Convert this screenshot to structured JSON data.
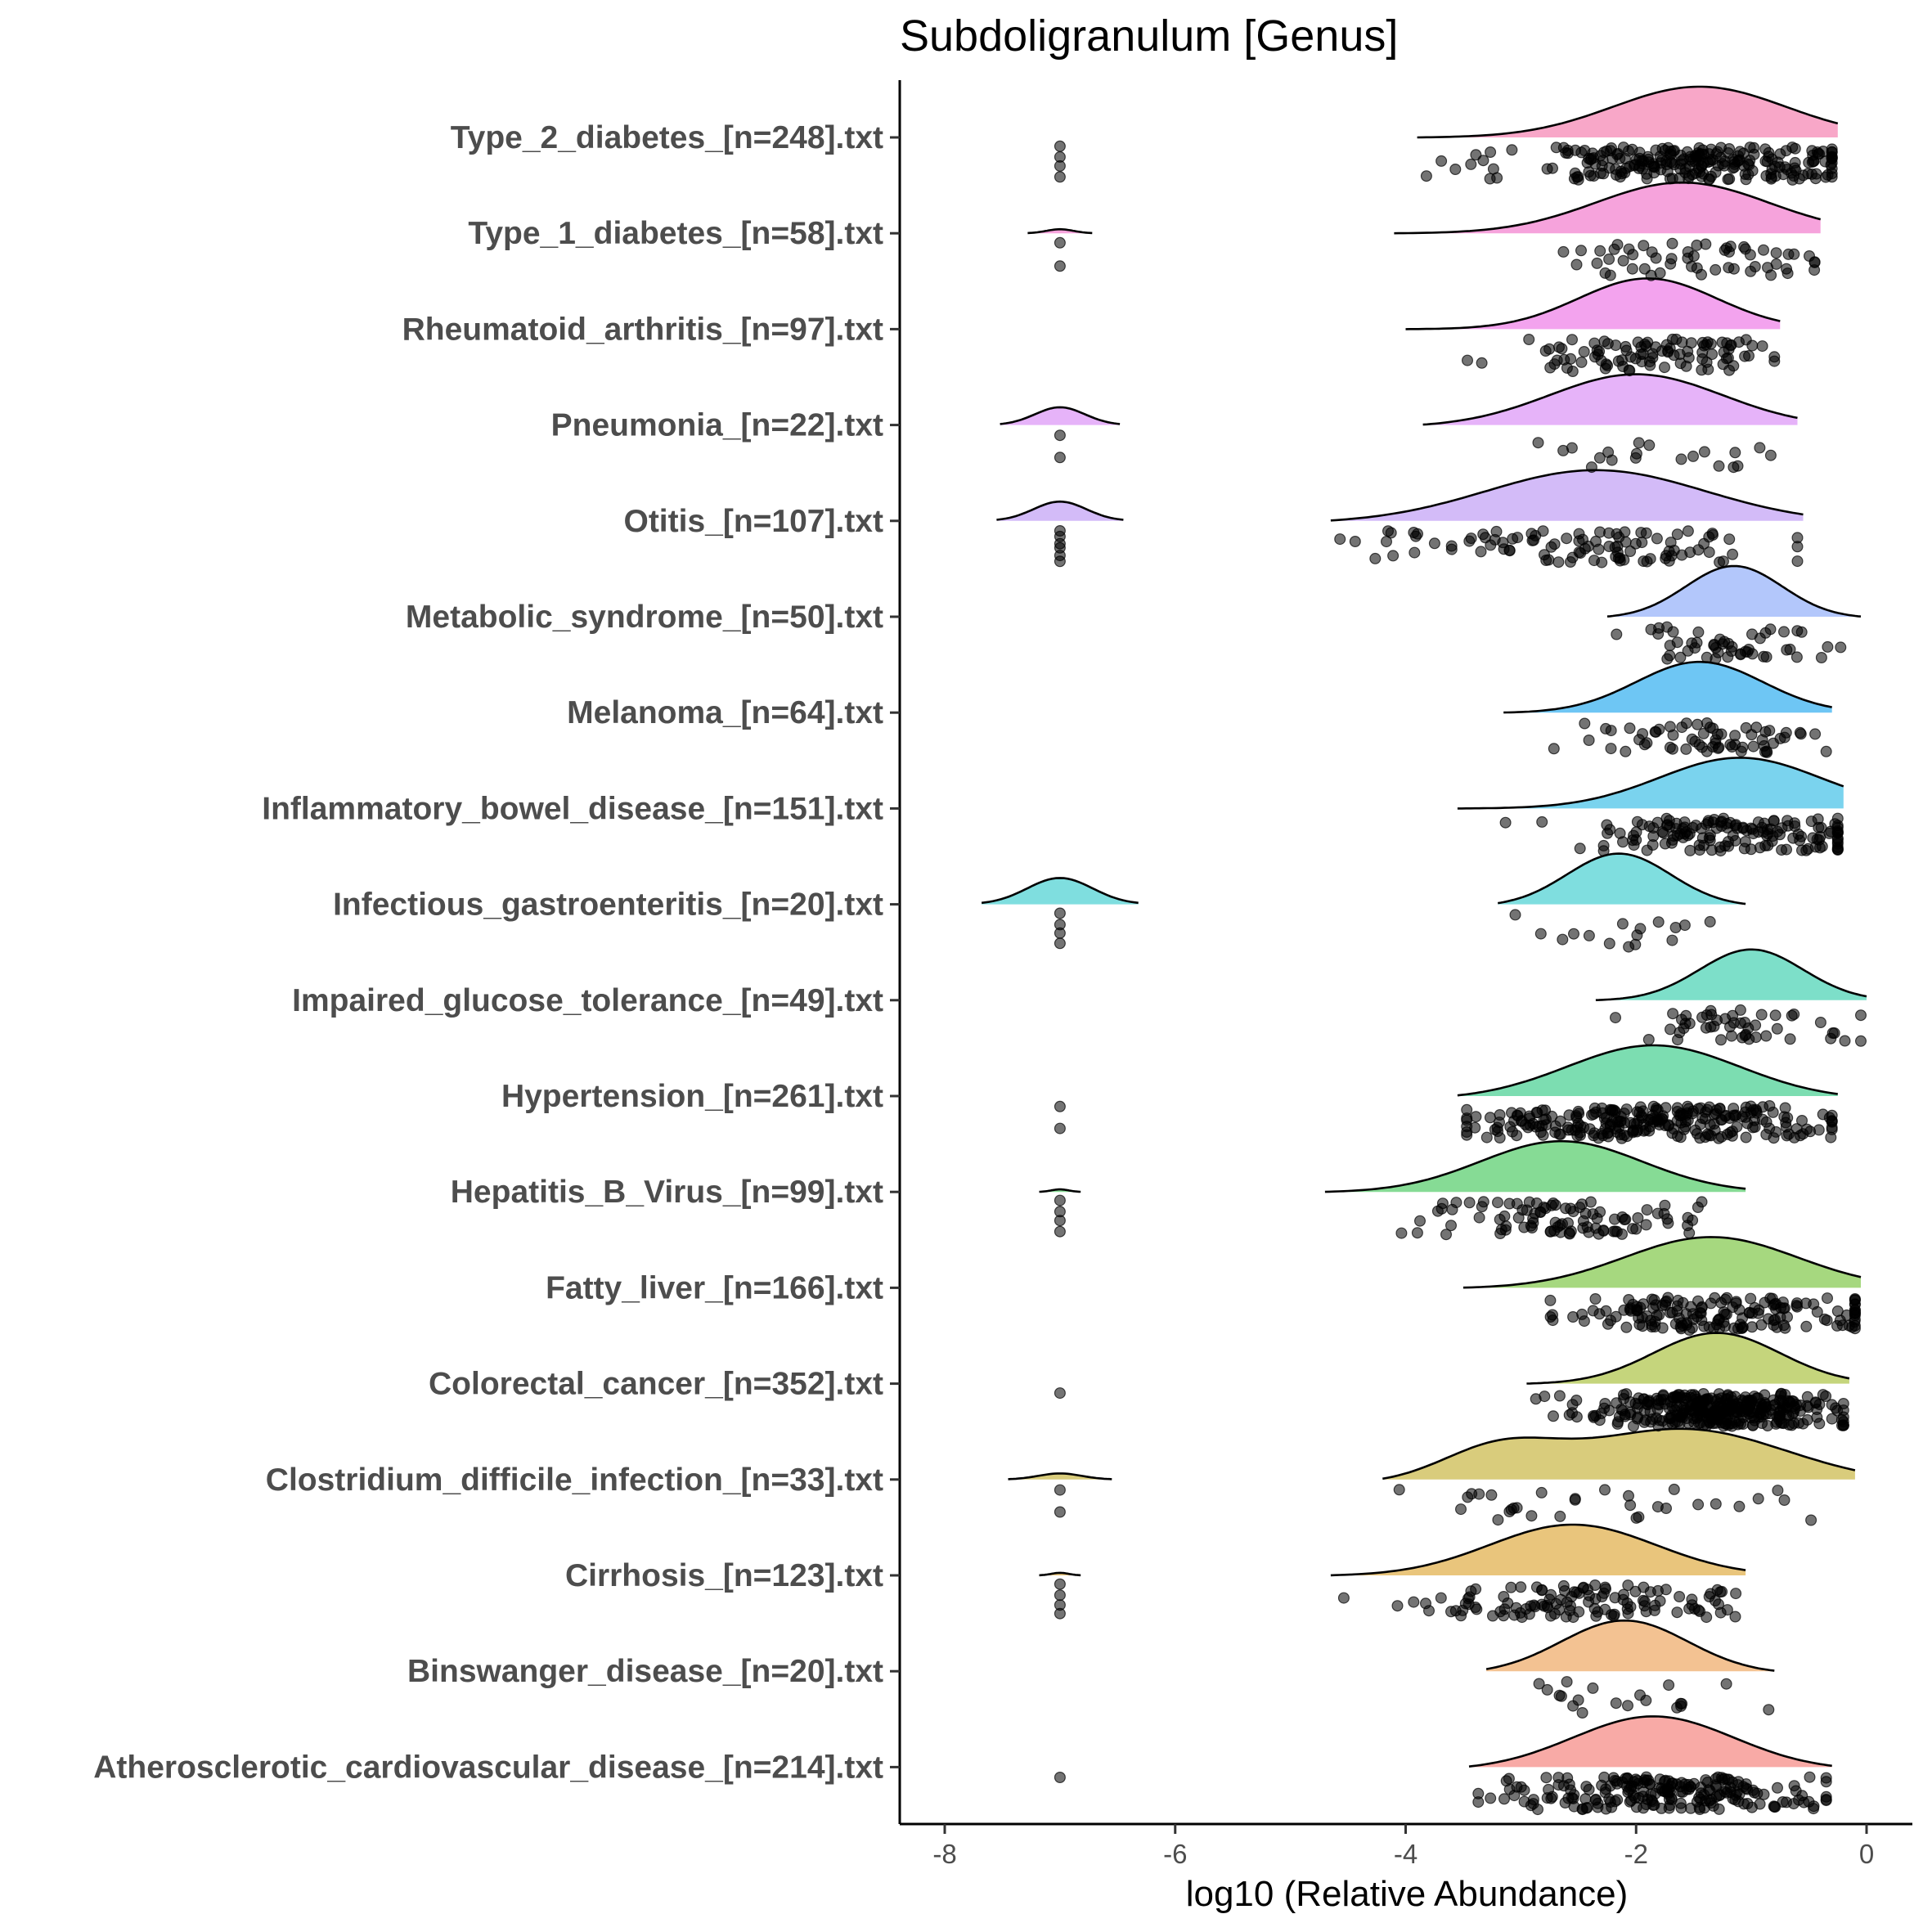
{
  "chart_data": {
    "type": "raincloud",
    "title": "Subdoligranulum [Genus]",
    "xlabel": "log10 (Relative Abundance)",
    "ylabel": "",
    "xlim": [
      -8.4,
      0.4
    ],
    "xticks": [
      -8,
      -6,
      -4,
      -2,
      0
    ],
    "grid": false,
    "legend": "none",
    "series": [
      {
        "label": "Type_2_diabetes_[n=248].txt",
        "n": 248,
        "color": "#F8A7C8",
        "main": {
          "range": [
            -3.9,
            -0.25
          ],
          "peaks": [
            {
              "x": -1.45,
              "sd": 0.75,
              "w": 1
            }
          ]
        },
        "zero": {
          "x": -7.0,
          "count": 4
        }
      },
      {
        "label": "Type_1_diabetes_[n=58].txt",
        "n": 58,
        "color": "#F6A3DC",
        "main": {
          "range": [
            -4.1,
            -0.4
          ],
          "peaks": [
            {
              "x": -1.6,
              "sd": 0.75,
              "w": 1
            }
          ]
        },
        "zero": {
          "x": -7.0,
          "count": 2,
          "hw": 0.28,
          "h": 0.08
        }
      },
      {
        "label": "Rheumatoid_arthritis_[n=97].txt",
        "n": 97,
        "color": "#F3A3EE",
        "main": {
          "range": [
            -4.0,
            -0.75
          ],
          "peaks": [
            {
              "x": -1.9,
              "sd": 0.6,
              "w": 1
            }
          ]
        },
        "zero": null
      },
      {
        "label": "Pneumonia_[n=22].txt",
        "n": 22,
        "color": "#E6B3F9",
        "main": {
          "range": [
            -3.85,
            -0.6
          ],
          "peaks": [
            {
              "x": -2.0,
              "sd": 0.75,
              "w": 1
            }
          ]
        },
        "zero": {
          "x": -7.0,
          "count": 2,
          "hw": 0.52,
          "h": 0.35
        }
      },
      {
        "label": "Otitis_[n=107].txt",
        "n": 107,
        "color": "#D3BBF8",
        "main": {
          "range": [
            -4.65,
            -0.55
          ],
          "peaks": [
            {
              "x": -2.35,
              "sd": 0.95,
              "w": 1
            }
          ]
        },
        "zero": {
          "x": -7.0,
          "count": 6,
          "hw": 0.55,
          "h": 0.38
        }
      },
      {
        "label": "Metabolic_syndrome_[n=50].txt",
        "n": 50,
        "color": "#B3C7FB",
        "main": {
          "range": [
            -2.25,
            -0.05
          ],
          "peaks": [
            {
              "x": -1.15,
              "sd": 0.42,
              "w": 1
            }
          ]
        },
        "zero": null
      },
      {
        "label": "Melanoma_[n=64].txt",
        "n": 64,
        "color": "#6EC6F4",
        "main": {
          "range": [
            -3.15,
            -0.3
          ],
          "peaks": [
            {
              "x": -1.45,
              "sd": 0.55,
              "w": 1
            }
          ]
        },
        "zero": null
      },
      {
        "label": "Inflammatory_bowel_disease_[n=151].txt",
        "n": 151,
        "color": "#7AD3EE",
        "main": {
          "range": [
            -3.55,
            -0.2
          ],
          "peaks": [
            {
              "x": -1.1,
              "sd": 0.7,
              "w": 1
            }
          ]
        },
        "zero": null
      },
      {
        "label": "Infectious_gastroenteritis_[n=20].txt",
        "n": 20,
        "color": "#7FDEDF",
        "main": {
          "range": [
            -3.2,
            -1.05
          ],
          "peaks": [
            {
              "x": -2.15,
              "sd": 0.45,
              "w": 1
            }
          ]
        },
        "zero": {
          "x": -7.0,
          "count": 4,
          "hw": 0.68,
          "h": 0.52
        }
      },
      {
        "label": "Impaired_glucose_tolerance_[n=49].txt",
        "n": 49,
        "color": "#7DDFC9",
        "main": {
          "range": [
            -2.35,
            0.0
          ],
          "peaks": [
            {
              "x": -1.0,
              "sd": 0.45,
              "w": 1
            }
          ]
        },
        "zero": null
      },
      {
        "label": "Hypertension_[n=261].txt",
        "n": 261,
        "color": "#7CDDB1",
        "main": {
          "range": [
            -3.55,
            -0.25
          ],
          "peaks": [
            {
              "x": -1.85,
              "sd": 0.75,
              "w": 1
            }
          ]
        },
        "zero": {
          "x": -7.0,
          "count": 2
        }
      },
      {
        "label": "Hepatitis_B_Virus_[n=99].txt",
        "n": 99,
        "color": "#86DB95",
        "main": {
          "range": [
            -4.7,
            -1.05
          ],
          "peaks": [
            {
              "x": -2.65,
              "sd": 0.7,
              "w": 1
            }
          ]
        },
        "zero": {
          "x": -7.0,
          "count": 4,
          "hw": 0.18,
          "h": 0.05
        }
      },
      {
        "label": "Fatty_liver_[n=166].txt",
        "n": 166,
        "color": "#A6D87F",
        "main": {
          "range": [
            -3.5,
            -0.05
          ],
          "peaks": [
            {
              "x": -1.35,
              "sd": 0.75,
              "w": 1
            }
          ]
        },
        "zero": null
      },
      {
        "label": "Colorectal_cancer_[n=352].txt",
        "n": 352,
        "color": "#C5D57C",
        "main": {
          "range": [
            -2.95,
            -0.15
          ],
          "peaks": [
            {
              "x": -1.3,
              "sd": 0.55,
              "w": 1
            }
          ]
        },
        "zero": {
          "x": -7.0,
          "count": 1
        }
      },
      {
        "label": "Clostridium_difficile_infection_[n=33].txt",
        "n": 33,
        "color": "#D9CC7C",
        "main": {
          "range": [
            -4.2,
            -0.1
          ],
          "peaks": [
            {
              "x": -3.2,
              "sd": 0.5,
              "w": 0.5
            },
            {
              "x": -1.6,
              "sd": 0.9,
              "w": 0.85
            }
          ]
        },
        "zero": {
          "x": -7.0,
          "count": 2,
          "hw": 0.45,
          "h": 0.12
        }
      },
      {
        "label": "Cirrhosis_[n=123].txt",
        "n": 123,
        "color": "#E9C57C",
        "main": {
          "range": [
            -4.65,
            -1.05
          ],
          "peaks": [
            {
              "x": -2.55,
              "sd": 0.72,
              "w": 1
            }
          ]
        },
        "zero": {
          "x": -7.0,
          "count": 4,
          "hw": 0.18,
          "h": 0.05
        }
      },
      {
        "label": "Binswanger_disease_[n=20].txt",
        "n": 20,
        "color": "#F3C292",
        "main": {
          "range": [
            -3.3,
            -0.8
          ],
          "peaks": [
            {
              "x": -2.1,
              "sd": 0.55,
              "w": 1
            }
          ]
        },
        "zero": null
      },
      {
        "label": "Atherosclerotic_cardiovascular_disease_[n=214].txt",
        "n": 214,
        "color": "#F8AAA6",
        "main": {
          "range": [
            -3.45,
            -0.3
          ],
          "peaks": [
            {
              "x": -1.85,
              "sd": 0.7,
              "w": 1
            }
          ]
        },
        "zero": {
          "x": -7.0,
          "count": 1
        }
      }
    ]
  }
}
